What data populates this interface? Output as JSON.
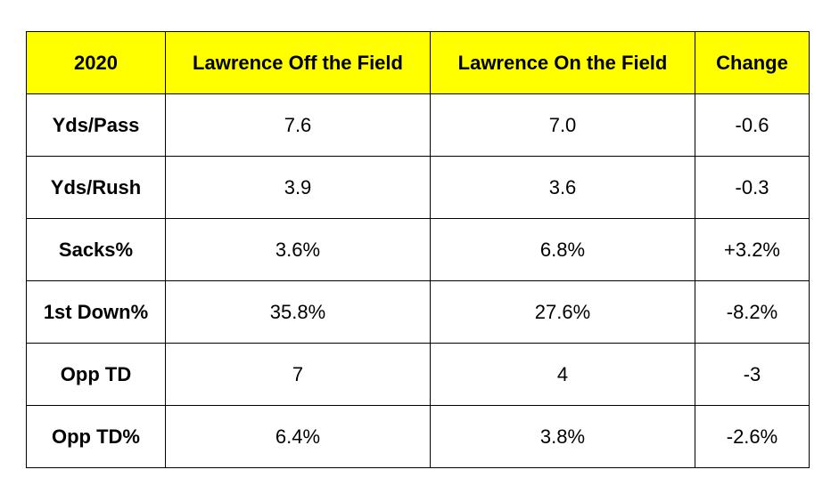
{
  "chart_data": {
    "type": "table",
    "header_color": "#ffff00",
    "columns": [
      "2020",
      "Lawrence Off the Field",
      "Lawrence On the Field",
      "Change"
    ],
    "rows": [
      {
        "label": "Yds/Pass",
        "values": [
          "7.6",
          "7.0",
          "-0.6"
        ]
      },
      {
        "label": "Yds/Rush",
        "values": [
          "3.9",
          "3.6",
          "-0.3"
        ]
      },
      {
        "label": "Sacks%",
        "values": [
          "3.6%",
          "6.8%",
          "+3.2%"
        ]
      },
      {
        "label": "1st Down%",
        "values": [
          "35.8%",
          "27.6%",
          "-8.2%"
        ]
      },
      {
        "label": "Opp TD",
        "values": [
          "7",
          "4",
          "-3"
        ]
      },
      {
        "label": "Opp TD%",
        "values": [
          "6.4%",
          "3.8%",
          "-2.6%"
        ]
      }
    ]
  }
}
